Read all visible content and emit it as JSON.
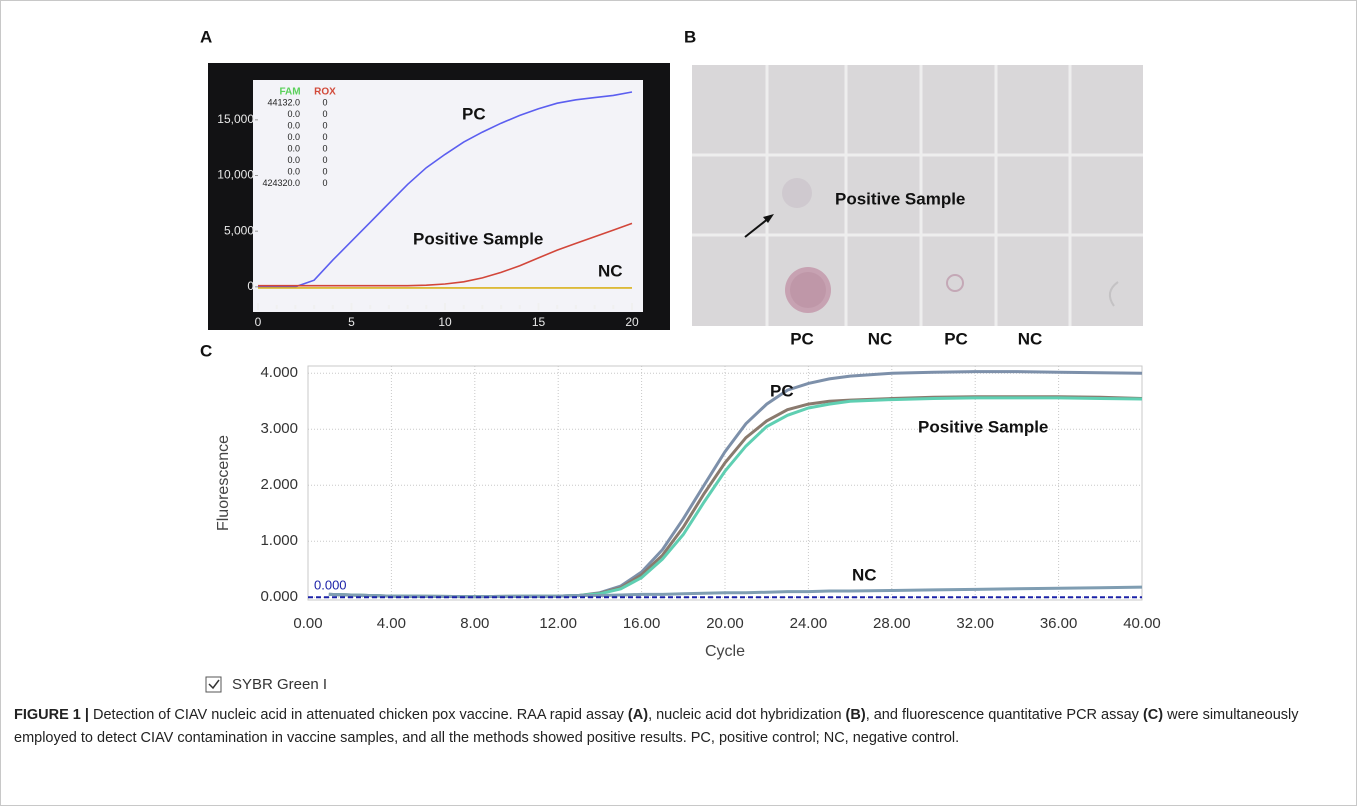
{
  "chart_data": [
    {
      "type": "line",
      "panel": "A",
      "x": [
        0,
        1,
        2,
        3,
        4,
        5,
        6,
        7,
        8,
        9,
        10,
        11,
        12,
        13,
        14,
        15,
        16,
        17,
        18,
        19,
        20
      ],
      "series": [
        {
          "color": "#5b5ef0",
          "values": [
            0,
            0,
            0,
            600,
            2400,
            4100,
            5800,
            7500,
            9200,
            10700,
            11900,
            13000,
            13900,
            14700,
            15400,
            16000,
            16500,
            16800,
            17000,
            17200,
            17500
          ]
        },
        {
          "color": "#d2463a",
          "values": [
            100,
            100,
            100,
            100,
            100,
            100,
            100,
            100,
            100,
            150,
            250,
            450,
            800,
            1300,
            1900,
            2600,
            3300,
            3900,
            4500,
            5100,
            5700
          ]
        },
        {
          "color": "#d9b21e",
          "values": [
            -100,
            -100,
            -100,
            -100,
            -100,
            -100,
            -100,
            -100,
            -100,
            -100,
            -100,
            -100,
            -100,
            -100,
            -100,
            -100,
            -100,
            -100,
            -100,
            -100,
            -100
          ]
        }
      ],
      "xlim": [
        0,
        20
      ],
      "xticks": [
        0,
        5,
        10,
        15,
        20
      ],
      "ylim": [
        -2800,
        18400
      ],
      "yticks": [
        0,
        {
          "value": 5000,
          "label": "5,000"
        },
        {
          "value": 10000,
          "label": "10,000"
        },
        {
          "value": 15000,
          "label": "15,000"
        }
      ],
      "annotations": [
        "PC",
        "Positive Sample",
        "NC"
      ],
      "readout": {
        "headers": [
          "FAM",
          "ROX"
        ],
        "rows": [
          [
            "44132.0",
            "0"
          ],
          [
            "0.0",
            "0"
          ],
          [
            "0.0",
            "0"
          ],
          [
            "0.0",
            "0"
          ],
          [
            "0.0",
            "0"
          ],
          [
            "0.0",
            "0"
          ],
          [
            "0.0",
            "0"
          ],
          [
            "424320.0",
            "0"
          ]
        ]
      }
    },
    {
      "type": "line",
      "panel": "C",
      "x": [
        1,
        4,
        8,
        12,
        13,
        14,
        15,
        16,
        17,
        18,
        19,
        20,
        21,
        22,
        23,
        24,
        25,
        26,
        28,
        30,
        32,
        34,
        36,
        38,
        40
      ],
      "series": [
        {
          "color": "#7d90aa",
          "values": [
            0.05,
            0.02,
            0.01,
            0.02,
            0.03,
            0.08,
            0.2,
            0.45,
            0.85,
            1.4,
            2.0,
            2.6,
            3.1,
            3.45,
            3.7,
            3.82,
            3.9,
            3.95,
            4.0,
            4.02,
            4.03,
            4.03,
            4.02,
            4.01,
            4.0
          ]
        },
        {
          "color": "#8a7a6e",
          "values": [
            0.05,
            0.02,
            0.01,
            0.02,
            0.03,
            0.07,
            0.17,
            0.4,
            0.75,
            1.25,
            1.85,
            2.4,
            2.85,
            3.15,
            3.35,
            3.45,
            3.5,
            3.52,
            3.55,
            3.57,
            3.58,
            3.58,
            3.58,
            3.57,
            3.55
          ]
        },
        {
          "color": "#5fcfb2",
          "values": [
            0.05,
            0.02,
            0.01,
            0.02,
            0.03,
            0.06,
            0.15,
            0.35,
            0.68,
            1.12,
            1.7,
            2.25,
            2.7,
            3.05,
            3.25,
            3.38,
            3.45,
            3.5,
            3.53,
            3.55,
            3.56,
            3.56,
            3.56,
            3.55,
            3.54
          ]
        },
        {
          "color": "#7f9db2",
          "values": [
            0.05,
            0.02,
            0.01,
            0.02,
            0.03,
            0.03,
            0.04,
            0.05,
            0.05,
            0.06,
            0.07,
            0.08,
            0.08,
            0.09,
            0.1,
            0.1,
            0.11,
            0.11,
            0.12,
            0.13,
            0.14,
            0.15,
            0.16,
            0.17,
            0.18
          ]
        }
      ],
      "xlim": [
        0,
        40
      ],
      "xticks": [
        {
          "value": 0,
          "label": "0.00"
        },
        {
          "value": 4,
          "label": "4.00"
        },
        {
          "value": 8,
          "label": "8.00"
        },
        {
          "value": 12,
          "label": "12.00"
        },
        {
          "value": 16,
          "label": "16.00"
        },
        {
          "value": 20,
          "label": "20.00"
        },
        {
          "value": 24,
          "label": "24.00"
        },
        {
          "value": 28,
          "label": "28.00"
        },
        {
          "value": 32,
          "label": "32.00"
        },
        {
          "value": 36,
          "label": "36.00"
        },
        {
          "value": 40,
          "label": "40.00"
        }
      ],
      "ylim": [
        -0.05,
        4.13
      ],
      "yticks": [
        {
          "value": 0,
          "label": "0.000"
        },
        {
          "value": 1,
          "label": "1.000"
        },
        {
          "value": 2,
          "label": "2.000"
        },
        {
          "value": 3,
          "label": "3.000"
        },
        {
          "value": 4,
          "label": "4.000"
        }
      ],
      "grid": true,
      "threshold": {
        "value": 0,
        "label": "0.000"
      },
      "xlabel": "Cycle",
      "ylabel": "Fluorescence",
      "annotations": [
        "PC",
        "Positive Sample",
        "NC"
      ],
      "channel": "SYBR Green I"
    }
  ],
  "panel_b": {
    "panel": "B",
    "annotation": "Positive Sample",
    "lanes": [
      "PC",
      "NC",
      "PC",
      "NC"
    ]
  },
  "caption": {
    "label": "FIGURE 1 |",
    "parts": [
      "Detection of CIAV nucleic acid in attenuated chicken pox vaccine. RAA rapid assay ",
      "(A)",
      ", nucleic acid dot hybridization ",
      "(B)",
      ", and fluorescence quantitative PCR assay ",
      "(C)",
      " were simultaneously employed to detect CIAV contamination in vaccine samples, and all the methods showed positive results. PC, positive control; NC, negative control."
    ]
  }
}
